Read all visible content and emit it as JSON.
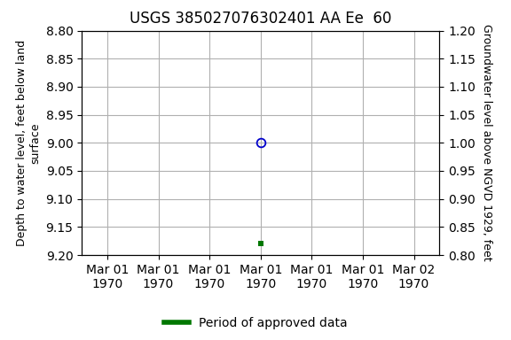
{
  "chart_data": {
    "type": "scatter",
    "title": "USGS 385027076302401 AA Ee  60",
    "y_label": "Depth to water level, feet below land\nsurface",
    "y2_label": "Groundwater level above NGVD 1929, feet",
    "categories": [
      "Mar 01\n1970",
      "Mar 01\n1970",
      "Mar 01\n1970",
      "Mar 01\n1970",
      "Mar 01\n1970",
      "Mar 01\n1970",
      "Mar 02\n1970"
    ],
    "series": [
      {
        "color": "#0000cc",
        "marker": "open-circle",
        "values": [
          null,
          null,
          null,
          9.0,
          null,
          null,
          null
        ]
      },
      {
        "name": "Period of approved data",
        "color": "#007700",
        "marker": "square",
        "values": [
          null,
          null,
          null,
          9.18,
          null,
          null,
          null
        ]
      }
    ],
    "ylim": [
      9.2,
      8.8
    ],
    "yticks": [
      {
        "value": 8.8,
        "label": "8.80"
      },
      {
        "value": 8.85,
        "label": "8.85"
      },
      {
        "value": 8.9,
        "label": "8.90"
      },
      {
        "value": 8.95,
        "label": "8.95"
      },
      {
        "value": 9.0,
        "label": "9.00"
      },
      {
        "value": 9.05,
        "label": "9.05"
      },
      {
        "value": 9.1,
        "label": "9.10"
      },
      {
        "value": 9.15,
        "label": "9.15"
      },
      {
        "value": 9.2,
        "label": "9.20"
      }
    ],
    "y2lim": [
      0.8,
      1.2
    ],
    "y2ticks": [
      {
        "value": 0.8,
        "label": "0.80"
      },
      {
        "value": 0.85,
        "label": "0.85"
      },
      {
        "value": 0.9,
        "label": "0.90"
      },
      {
        "value": 0.95,
        "label": "0.95"
      },
      {
        "value": 1.0,
        "label": "1.00"
      },
      {
        "value": 1.05,
        "label": "1.05"
      },
      {
        "value": 1.1,
        "label": "1.10"
      },
      {
        "value": 1.15,
        "label": "1.15"
      },
      {
        "value": 1.2,
        "label": "1.20"
      }
    ],
    "grid": true,
    "legend": "lower center"
  }
}
